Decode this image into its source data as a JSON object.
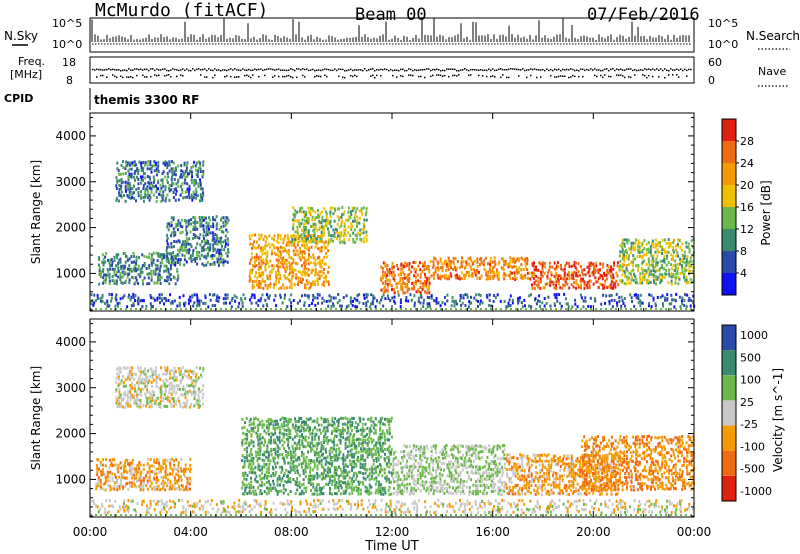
{
  "header": {
    "station": "McMurdo (fitACF)",
    "beam": "Beam 00",
    "date": "07/Feb/2016"
  },
  "status_panel": {
    "left_top_label": "N.Sky",
    "left_freq_label_1": "Freq.",
    "left_freq_label_2": "[MHz]",
    "left_cpid_label": "CPID",
    "nsky_ticks": [
      "10^5",
      "10^0"
    ],
    "freq_ticks": [
      "18",
      "8"
    ],
    "right_search_label": "N.Search",
    "right_nave_label": "Nave",
    "search_ticks": [
      "10^5",
      "10^0"
    ],
    "nave_ticks": [
      "60",
      "0"
    ],
    "cpid_text": "themis 3300 RF"
  },
  "colors": {
    "power_scale": [
      "#1010f0",
      "#2a4aa8",
      "#3a8a70",
      "#6ab84a",
      "#f0c000",
      "#f59a00",
      "#ef6a10",
      "#e22010"
    ],
    "velocity_scale": [
      "#e22010",
      "#ef6a10",
      "#f59a00",
      "#c8c8c8",
      "#6ab84a",
      "#3a8a70",
      "#2a4aa8"
    ]
  },
  "chart_data": [
    {
      "type": "heatmap",
      "title": "",
      "xlabel": "Time UT",
      "ylabel": "Slant Range [km]",
      "x_tick_labels": [
        "00:00",
        "04:00",
        "08:00",
        "12:00",
        "16:00",
        "20:00",
        "00:00"
      ],
      "x_range_hours": [
        0,
        24
      ],
      "ylim": [
        180,
        4500
      ],
      "y_tick_labels": [
        "1000",
        "2000",
        "3000",
        "4000"
      ],
      "colorbar": {
        "label": "Power [dB]",
        "ticks": [
          "4",
          "8",
          "12",
          "16",
          "20",
          "24",
          "28"
        ],
        "range": [
          0,
          30
        ]
      },
      "regions": [
        {
          "t": [
            0.3,
            3.5
          ],
          "r": [
            800,
            1500
          ],
          "value": 9
        },
        {
          "t": [
            1.0,
            4.5
          ],
          "r": [
            2600,
            3500
          ],
          "value": 8
        },
        {
          "t": [
            3.0,
            5.5
          ],
          "r": [
            1200,
            2300
          ],
          "value": 8
        },
        {
          "t": [
            6.3,
            9.5
          ],
          "r": [
            700,
            1900
          ],
          "value": 20
        },
        {
          "t": [
            8.0,
            11.0
          ],
          "r": [
            1700,
            2500
          ],
          "value": 14
        },
        {
          "t": [
            11.5,
            13.5
          ],
          "r": [
            600,
            1300
          ],
          "value": 24
        },
        {
          "t": [
            13.5,
            17.5
          ],
          "r": [
            900,
            1400
          ],
          "value": 22
        },
        {
          "t": [
            17.5,
            21.0
          ],
          "r": [
            700,
            1300
          ],
          "value": 26
        },
        {
          "t": [
            21.0,
            24.0
          ],
          "r": [
            800,
            1800
          ],
          "value": 14
        },
        {
          "t": [
            0,
            24
          ],
          "r": [
            300,
            600
          ],
          "value": 6
        }
      ]
    },
    {
      "type": "heatmap",
      "title": "",
      "xlabel": "Time UT",
      "ylabel": "Slant Range [km]",
      "x_tick_labels": [
        "00:00",
        "04:00",
        "08:00",
        "12:00",
        "16:00",
        "20:00",
        "00:00"
      ],
      "x_range_hours": [
        0,
        24
      ],
      "ylim": [
        180,
        4500
      ],
      "y_tick_labels": [
        "1000",
        "2000",
        "3000",
        "4000"
      ],
      "colorbar": {
        "label": "Velocity [m s^-1]",
        "ticks": [
          "1000",
          "500",
          "100",
          "25",
          "-25",
          "-100",
          "-500",
          "-1000"
        ],
        "range": [
          -1000,
          1000
        ]
      },
      "regions": [
        {
          "t": [
            0.2,
            4.0
          ],
          "r": [
            800,
            1500
          ],
          "value": -300
        },
        {
          "t": [
            1.0,
            4.5
          ],
          "r": [
            2600,
            3500
          ],
          "value": 0
        },
        {
          "t": [
            6.0,
            12.0
          ],
          "r": [
            700,
            2400
          ],
          "value": 400
        },
        {
          "t": [
            12.0,
            16.5
          ],
          "r": [
            700,
            1800
          ],
          "value": 150
        },
        {
          "t": [
            16.5,
            21.0
          ],
          "r": [
            700,
            1600
          ],
          "value": -300
        },
        {
          "t": [
            19.5,
            24.0
          ],
          "r": [
            800,
            2000
          ],
          "value": -400
        },
        {
          "t": [
            0,
            24
          ],
          "r": [
            300,
            600
          ],
          "value": -50
        }
      ]
    }
  ]
}
